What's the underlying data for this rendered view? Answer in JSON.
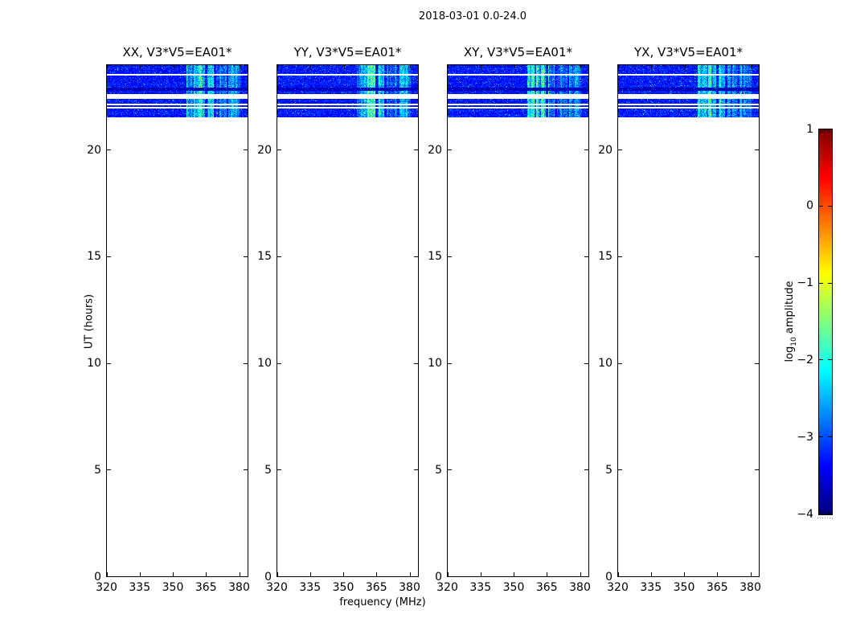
{
  "title": "2018-03-01 0.0-24.0",
  "xlabel": "frequency (MHz)",
  "ylabel": "UT (hours)",
  "subplots": [
    {
      "title": "XX, V3*V5=EA01*"
    },
    {
      "title": "YY, V3*V5=EA01*"
    },
    {
      "title": "XY, V3*V5=EA01*"
    },
    {
      "title": "YX, V3*V5=EA01*"
    }
  ],
  "axes": {
    "xticks": [
      "320",
      "335",
      "350",
      "365",
      "380"
    ],
    "xtick_values": [
      320,
      335,
      350,
      365,
      380
    ],
    "yticks": [
      "0",
      "5",
      "10",
      "15",
      "20"
    ],
    "ytick_values": [
      0,
      5,
      10,
      15,
      20
    ],
    "xlim": [
      320,
      384
    ],
    "ylim": [
      0,
      24
    ]
  },
  "colorbar": {
    "label_prefix": "log",
    "label_sub": "10",
    "label_suffix": " amplitude",
    "ticks": [
      "1",
      "0",
      "−1",
      "−2",
      "−3",
      "−4"
    ],
    "tick_values": [
      1,
      0,
      -1,
      -2,
      -3,
      -4
    ],
    "lim": [
      -4,
      1
    ],
    "colormap": "jet"
  },
  "colors": {
    "background": "#ffffff",
    "axis": "#000000",
    "base_noise": "#0010ff",
    "bright_rfi": "#00e0e0"
  },
  "chart_data": {
    "type": "heatmap",
    "title": "2018-03-01 0.0-24.0",
    "subplot_titles": [
      "XX, V3*V5=EA01*",
      "YY, V3*V5=EA01*",
      "XY, V3*V5=EA01*",
      "YX, V3*V5=EA01*"
    ],
    "xlabel": "frequency (MHz)",
    "ylabel": "UT (hours)",
    "xlim": [
      320,
      384
    ],
    "ylim": [
      0,
      24
    ],
    "xticks": [
      320,
      335,
      350,
      365,
      380
    ],
    "yticks": [
      0,
      5,
      10,
      15,
      20
    ],
    "legend_position": "right-colorbar",
    "grid": false,
    "colorbar": {
      "label": "log10 amplitude",
      "lim": [
        -4,
        1
      ],
      "ticks": [
        1,
        0,
        -1,
        -2,
        -3,
        -4
      ],
      "colormap": "jet"
    },
    "data": {
      "ut_start": 21.55,
      "ut_end": 24.0,
      "base_log10_amplitude": -3.3,
      "noise_spread": 0.3,
      "blank_ut_ranges": [
        [
          23.5,
          23.6
        ],
        [
          22.42,
          22.65
        ],
        [
          22.1,
          22.18
        ],
        [
          21.95,
          22.03
        ]
      ],
      "dark_ut_ranges": [
        [
          22.78,
          22.95
        ]
      ],
      "dark_log10_amplitude": -3.85,
      "bright_bands_mhz": [
        [
          356,
          364.5,
          1.0
        ],
        [
          365.5,
          368.5,
          0.8
        ],
        [
          369.5,
          374,
          0.45
        ],
        [
          375,
          380.5,
          0.6
        ]
      ],
      "note_no_data_below_ut": 21.55
    }
  }
}
